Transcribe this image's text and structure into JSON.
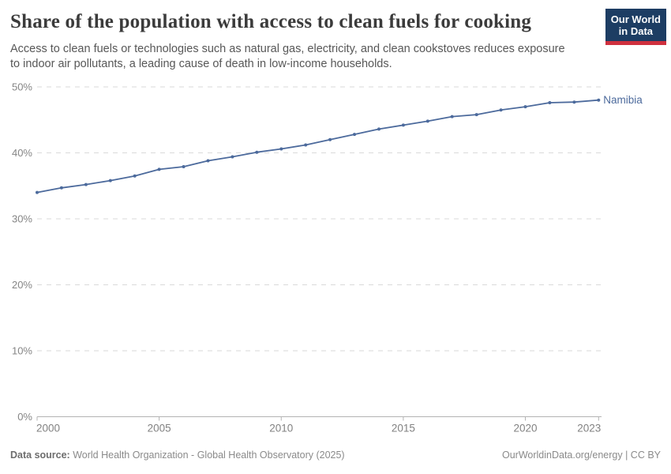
{
  "header": {
    "title": "Share of the population with access to clean fuels for cooking",
    "subtitle": "Access to clean fuels or technologies such as natural gas, electricity, and clean cookstoves reduces exposure to indoor air pollutants, a leading cause of death in low-income households."
  },
  "logo": {
    "line1": "Our World",
    "line2": "in Data",
    "bg_color": "#1d3d63",
    "accent_color": "#cf303e"
  },
  "chart_data": {
    "type": "line",
    "title": "Share of the population with access to clean fuels for cooking",
    "xlabel": "",
    "ylabel": "",
    "xlim": [
      2000,
      2023
    ],
    "ylim": [
      0,
      50
    ],
    "xticks": [
      2000,
      2005,
      2010,
      2015,
      2020,
      2023
    ],
    "yticks": [
      0,
      10,
      20,
      30,
      40,
      50
    ],
    "ytick_suffix": "%",
    "grid": "horizontal-dashed",
    "legend_position": "end-of-line-label",
    "series": [
      {
        "name": "Namibia",
        "color": "#4C6A9C",
        "x": [
          2000,
          2001,
          2002,
          2003,
          2004,
          2005,
          2006,
          2007,
          2008,
          2009,
          2010,
          2011,
          2012,
          2013,
          2014,
          2015,
          2016,
          2017,
          2018,
          2019,
          2020,
          2021,
          2022,
          2023
        ],
        "values": [
          34.0,
          34.7,
          35.2,
          35.8,
          36.5,
          37.5,
          37.9,
          38.8,
          39.4,
          40.1,
          40.6,
          41.2,
          42.0,
          42.8,
          43.6,
          44.2,
          44.8,
          45.5,
          45.8,
          46.5,
          47.0,
          47.6,
          47.7,
          48.0
        ]
      }
    ]
  },
  "footer": {
    "source_label": "Data source:",
    "source_text": "World Health Organization - Global Health Observatory (2025)",
    "right_text": "OurWorldinData.org/energy | CC BY"
  }
}
